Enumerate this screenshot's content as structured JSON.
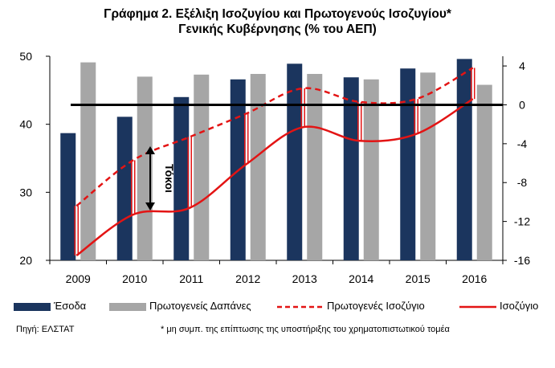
{
  "title_line1": "Γράφημα 2. Εξέλιξη Ισοζυγίου και Πρωτογενούς Ισοζυγίου*",
  "title_line2": "Γενικής Κυβέρνησης (% του ΑΕΠ)",
  "source": "Πηγή: ΕΛΣΤΑΤ",
  "footnote": "* μη συμπ. της επίπτωσης της υποστήριξης του χρηματοπιστωτικού τομέα",
  "annotation": "Τόκοι",
  "colors": {
    "revenue": "#1b355e",
    "primary_spending": "#a6a6a6",
    "balance_line": "#e31414",
    "zero_line": "#000000"
  },
  "chart_data": {
    "type": "bar",
    "title": "Γράφημα 2. Εξέλιξη Ισοζυγίου και Πρωτογενούς Ισοζυγίου* Γενικής Κυβέρνησης (% του ΑΕΠ)",
    "categories": [
      "2009",
      "2010",
      "2011",
      "2012",
      "2013",
      "2014",
      "2015",
      "2016"
    ],
    "left_axis": {
      "ylim": [
        20,
        50
      ],
      "ticks": [
        "20",
        "30",
        "40",
        "50"
      ]
    },
    "right_axis": {
      "ylim": [
        -16,
        5
      ],
      "ticks": [
        "-16",
        "-12",
        "-8",
        "-4",
        "0",
        "4"
      ]
    },
    "series": [
      {
        "name": "Έσοδα",
        "type": "bar",
        "axis": "left",
        "values": [
          38.7,
          41.1,
          44.0,
          46.6,
          48.9,
          46.9,
          48.2,
          49.6
        ]
      },
      {
        "name": "Πρωτογενείς Δαπάνες",
        "type": "bar",
        "axis": "left",
        "values": [
          49.1,
          47.0,
          47.3,
          47.4,
          47.4,
          46.6,
          47.6,
          45.8
        ]
      },
      {
        "name": "Πρωτογενές Ισοζύγιο",
        "type": "line",
        "style": "dashed",
        "axis": "right",
        "values": [
          -10.4,
          -5.7,
          -3.3,
          -0.9,
          1.7,
          0.3,
          0.6,
          3.8
        ]
      },
      {
        "name": "Ισοζύγιο",
        "type": "line",
        "style": "solid",
        "axis": "right",
        "values": [
          -15.5,
          -11.3,
          -10.6,
          -6.1,
          -2.3,
          -3.7,
          -3.0,
          0.6
        ]
      }
    ],
    "legend_position": "bottom"
  }
}
